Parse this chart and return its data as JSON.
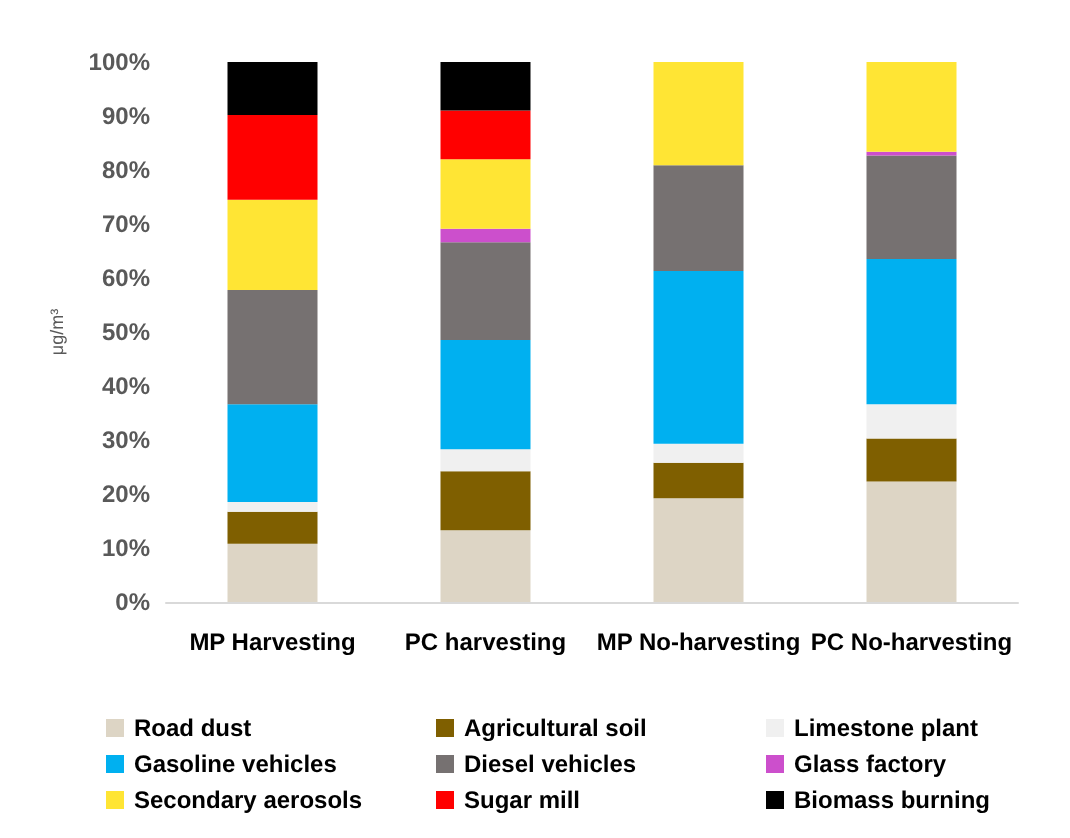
{
  "chart_data": {
    "type": "bar",
    "stacked": true,
    "ylabel": "μg/m³",
    "categories": [
      "MP Harvesting",
      "PC harvesting",
      "MP No-harvesting",
      "PC No-harvesting"
    ],
    "series": [
      {
        "name": "Road dust",
        "color": "#ddd5c5",
        "values": [
          10.8,
          13.3,
          19.2,
          22.3
        ]
      },
      {
        "name": "Agricultural soil",
        "color": "#7f5f00",
        "values": [
          5.9,
          10.9,
          6.6,
          8.0
        ]
      },
      {
        "name": "Limestone plant",
        "color": "#f0f0f0",
        "values": [
          1.8,
          4.1,
          3.5,
          6.3
        ]
      },
      {
        "name": "Gasoline vehicles",
        "color": "#00b0f0",
        "values": [
          18.1,
          20.2,
          32.0,
          26.9
        ]
      },
      {
        "name": "Diesel vehicles",
        "color": "#767171",
        "values": [
          21.2,
          18.1,
          19.6,
          19.2
        ]
      },
      {
        "name": "Glass factory",
        "color": "#cc4fcc",
        "values": [
          0,
          2.5,
          0,
          0.7
        ]
      },
      {
        "name": "Secondary aerosols",
        "color": "#ffe534",
        "values": [
          16.7,
          12.9,
          19.1,
          16.6
        ]
      },
      {
        "name": "Sugar mill",
        "color": "#ff0000",
        "values": [
          15.7,
          9.0,
          0,
          0
        ]
      },
      {
        "name": "Biomass burning",
        "color": "#000000",
        "values": [
          9.8,
          9.0,
          0,
          0
        ]
      }
    ],
    "ylim": [
      0,
      100
    ],
    "yticks": [
      {
        "value": 0,
        "label": "0%"
      },
      {
        "value": 10,
        "label": "10%"
      },
      {
        "value": 20,
        "label": "20%"
      },
      {
        "value": 30,
        "label": "30%"
      },
      {
        "value": 40,
        "label": "40%"
      },
      {
        "value": 50,
        "label": "50%"
      },
      {
        "value": 60,
        "label": "60%"
      },
      {
        "value": 70,
        "label": "70%"
      },
      {
        "value": 80,
        "label": "80%"
      },
      {
        "value": 90,
        "label": "90%"
      },
      {
        "value": 100,
        "label": "100%"
      }
    ],
    "grid": false,
    "legend": "bottom"
  }
}
